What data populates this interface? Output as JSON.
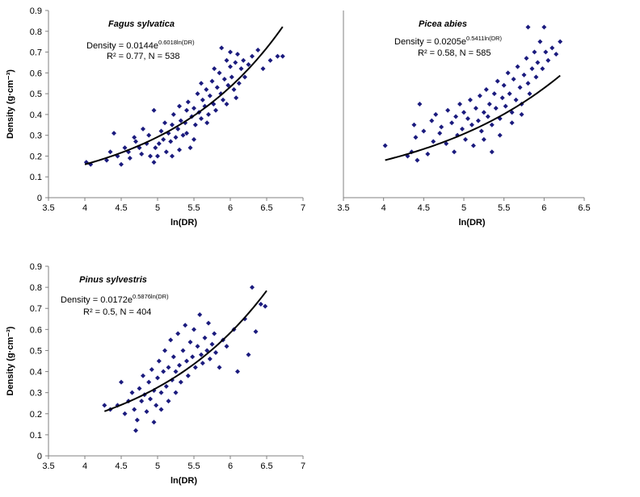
{
  "colors": {
    "marker": "#1b1b7e",
    "curve": "#000000",
    "axis": "#808080"
  },
  "chart_data": [
    {
      "type": "scatter",
      "title": "Fagus sylvatica",
      "xlabel": "ln(DR)",
      "ylabel": "Density (g·cm⁻³)",
      "xlim": [
        3.5,
        7
      ],
      "ylim": [
        0,
        0.9
      ],
      "xticks": [
        "3.5",
        "4",
        "4.5",
        "5",
        "5.5",
        "6",
        "6.5",
        "7"
      ],
      "yticks": [
        "0",
        "0.1",
        "0.2",
        "0.3",
        "0.4",
        "0.5",
        "0.6",
        "0.7",
        "0.8",
        "0.9"
      ],
      "equation": {
        "prefix": "Density = 0.0144e",
        "exponent": "0.6018ln(DR)",
        "stats": "R² = 0.77, N = 538"
      },
      "fit": {
        "a": 0.0144,
        "b": 0.6018,
        "x_range": [
          4.0,
          6.72
        ]
      },
      "points": [
        [
          4.02,
          0.17
        ],
        [
          4.08,
          0.16
        ],
        [
          4.3,
          0.18
        ],
        [
          4.35,
          0.22
        ],
        [
          4.4,
          0.31
        ],
        [
          4.45,
          0.2
        ],
        [
          4.5,
          0.16
        ],
        [
          4.55,
          0.24
        ],
        [
          4.6,
          0.22
        ],
        [
          4.62,
          0.19
        ],
        [
          4.68,
          0.29
        ],
        [
          4.7,
          0.27
        ],
        [
          4.75,
          0.24
        ],
        [
          4.78,
          0.21
        ],
        [
          4.8,
          0.33
        ],
        [
          4.85,
          0.26
        ],
        [
          4.88,
          0.3
        ],
        [
          4.9,
          0.2
        ],
        [
          4.95,
          0.42
        ],
        [
          4.97,
          0.24
        ],
        [
          5.0,
          0.2
        ],
        [
          5.02,
          0.26
        ],
        [
          5.05,
          0.32
        ],
        [
          5.08,
          0.28
        ],
        [
          5.1,
          0.36
        ],
        [
          5.12,
          0.22
        ],
        [
          5.15,
          0.31
        ],
        [
          5.18,
          0.27
        ],
        [
          5.2,
          0.35
        ],
        [
          5.22,
          0.4
        ],
        [
          5.25,
          0.29
        ],
        [
          5.28,
          0.33
        ],
        [
          5.3,
          0.44
        ],
        [
          5.32,
          0.37
        ],
        [
          5.35,
          0.3
        ],
        [
          5.38,
          0.36
        ],
        [
          5.4,
          0.42
        ],
        [
          5.42,
          0.46
        ],
        [
          5.45,
          0.24
        ],
        [
          5.47,
          0.39
        ],
        [
          5.5,
          0.43
        ],
        [
          5.52,
          0.35
        ],
        [
          5.55,
          0.5
        ],
        [
          5.57,
          0.41
        ],
        [
          5.6,
          0.38
        ],
        [
          5.62,
          0.47
        ],
        [
          5.65,
          0.44
        ],
        [
          5.67,
          0.52
        ],
        [
          5.7,
          0.4
        ],
        [
          5.72,
          0.49
        ],
        [
          5.75,
          0.56
        ],
        [
          5.77,
          0.45
        ],
        [
          5.8,
          0.42
        ],
        [
          5.82,
          0.53
        ],
        [
          5.85,
          0.6
        ],
        [
          5.87,
          0.5
        ],
        [
          5.9,
          0.47
        ],
        [
          5.92,
          0.57
        ],
        [
          5.95,
          0.66
        ],
        [
          5.97,
          0.54
        ],
        [
          6.0,
          0.63
        ],
        [
          6.02,
          0.58
        ],
        [
          6.05,
          0.52
        ],
        [
          6.07,
          0.65
        ],
        [
          6.1,
          0.69
        ],
        [
          6.12,
          0.55
        ],
        [
          6.15,
          0.62
        ],
        [
          6.18,
          0.66
        ],
        [
          6.2,
          0.58
        ],
        [
          6.25,
          0.64
        ],
        [
          6.3,
          0.68
        ],
        [
          6.38,
          0.71
        ],
        [
          6.45,
          0.62
        ],
        [
          6.55,
          0.66
        ],
        [
          6.65,
          0.68
        ],
        [
          6.72,
          0.68
        ],
        [
          5.6,
          0.55
        ],
        [
          5.88,
          0.72
        ],
        [
          6.0,
          0.7
        ],
        [
          5.78,
          0.62
        ],
        [
          5.95,
          0.45
        ],
        [
          6.08,
          0.48
        ],
        [
          5.5,
          0.28
        ],
        [
          5.4,
          0.31
        ],
        [
          5.68,
          0.36
        ],
        [
          5.3,
          0.23
        ],
        [
          5.2,
          0.2
        ],
        [
          4.95,
          0.17
        ]
      ]
    },
    {
      "type": "scatter",
      "title": "Picea abies",
      "xlabel": "ln(DR)",
      "ylabel": "",
      "xlim": [
        3.5,
        6.5
      ],
      "ylim": [
        0,
        0.9
      ],
      "xticks": [
        "3.5",
        "4",
        "4.5",
        "5",
        "5.5",
        "6",
        "6.5"
      ],
      "yticks": [],
      "equation": {
        "prefix": "Density = 0.0205e",
        "exponent": "0.5411ln(DR)",
        "stats": "R² = 0.58, N = 585"
      },
      "fit": {
        "a": 0.0205,
        "b": 0.5411,
        "x_range": [
          4.02,
          6.2
        ]
      },
      "points": [
        [
          4.02,
          0.25
        ],
        [
          4.3,
          0.2
        ],
        [
          4.35,
          0.22
        ],
        [
          4.38,
          0.35
        ],
        [
          4.4,
          0.29
        ],
        [
          4.42,
          0.18
        ],
        [
          4.45,
          0.45
        ],
        [
          4.5,
          0.32
        ],
        [
          4.55,
          0.21
        ],
        [
          4.6,
          0.37
        ],
        [
          4.62,
          0.27
        ],
        [
          4.65,
          0.4
        ],
        [
          4.7,
          0.31
        ],
        [
          4.72,
          0.34
        ],
        [
          4.78,
          0.26
        ],
        [
          4.8,
          0.42
        ],
        [
          4.85,
          0.36
        ],
        [
          4.88,
          0.22
        ],
        [
          4.9,
          0.39
        ],
        [
          4.92,
          0.3
        ],
        [
          4.95,
          0.45
        ],
        [
          4.98,
          0.33
        ],
        [
          5.0,
          0.41
        ],
        [
          5.02,
          0.28
        ],
        [
          5.05,
          0.38
        ],
        [
          5.08,
          0.47
        ],
        [
          5.1,
          0.35
        ],
        [
          5.12,
          0.25
        ],
        [
          5.15,
          0.43
        ],
        [
          5.18,
          0.37
        ],
        [
          5.2,
          0.49
        ],
        [
          5.22,
          0.32
        ],
        [
          5.25,
          0.41
        ],
        [
          5.28,
          0.52
        ],
        [
          5.3,
          0.39
        ],
        [
          5.32,
          0.45
        ],
        [
          5.35,
          0.35
        ],
        [
          5.38,
          0.5
        ],
        [
          5.4,
          0.43
        ],
        [
          5.42,
          0.56
        ],
        [
          5.45,
          0.38
        ],
        [
          5.48,
          0.48
        ],
        [
          5.5,
          0.54
        ],
        [
          5.52,
          0.44
        ],
        [
          5.55,
          0.6
        ],
        [
          5.57,
          0.5
        ],
        [
          5.6,
          0.41
        ],
        [
          5.62,
          0.57
        ],
        [
          5.65,
          0.47
        ],
        [
          5.67,
          0.63
        ],
        [
          5.7,
          0.53
        ],
        [
          5.72,
          0.45
        ],
        [
          5.75,
          0.59
        ],
        [
          5.78,
          0.67
        ],
        [
          5.8,
          0.55
        ],
        [
          5.82,
          0.5
        ],
        [
          5.85,
          0.62
        ],
        [
          5.88,
          0.7
        ],
        [
          5.9,
          0.58
        ],
        [
          5.92,
          0.65
        ],
        [
          5.95,
          0.75
        ],
        [
          5.98,
          0.62
        ],
        [
          6.0,
          0.82
        ],
        [
          6.02,
          0.7
        ],
        [
          6.05,
          0.66
        ],
        [
          6.1,
          0.72
        ],
        [
          6.15,
          0.69
        ],
        [
          6.2,
          0.75
        ],
        [
          5.8,
          0.82
        ],
        [
          5.35,
          0.22
        ],
        [
          5.25,
          0.28
        ],
        [
          5.45,
          0.3
        ],
        [
          5.6,
          0.36
        ],
        [
          5.72,
          0.4
        ]
      ]
    },
    {
      "type": "scatter",
      "title": "Pinus sylvestris",
      "xlabel": "ln(DR)",
      "ylabel": "Density (g·cm⁻³)",
      "xlim": [
        3.5,
        7
      ],
      "ylim": [
        0,
        0.9
      ],
      "xticks": [
        "3.5",
        "4",
        "4.5",
        "5",
        "5.5",
        "6",
        "6.5",
        "7"
      ],
      "yticks": [
        "0",
        "0.1",
        "0.2",
        "0.3",
        "0.4",
        "0.5",
        "0.6",
        "0.7",
        "0.8",
        "0.9"
      ],
      "equation": {
        "prefix": "Density = 0.0172e",
        "exponent": "0.5876ln(DR)",
        "stats": "R² = 0.5, N = 404"
      },
      "fit": {
        "a": 0.0172,
        "b": 0.5876,
        "x_range": [
          4.27,
          6.5
        ]
      },
      "points": [
        [
          4.27,
          0.24
        ],
        [
          4.35,
          0.22
        ],
        [
          4.45,
          0.24
        ],
        [
          4.5,
          0.35
        ],
        [
          4.55,
          0.2
        ],
        [
          4.6,
          0.26
        ],
        [
          4.65,
          0.3
        ],
        [
          4.68,
          0.22
        ],
        [
          4.7,
          0.12
        ],
        [
          4.72,
          0.17
        ],
        [
          4.75,
          0.32
        ],
        [
          4.78,
          0.26
        ],
        [
          4.8,
          0.38
        ],
        [
          4.82,
          0.29
        ],
        [
          4.85,
          0.21
        ],
        [
          4.88,
          0.35
        ],
        [
          4.9,
          0.27
        ],
        [
          4.92,
          0.41
        ],
        [
          4.95,
          0.31
        ],
        [
          4.98,
          0.24
        ],
        [
          5.0,
          0.37
        ],
        [
          5.02,
          0.45
        ],
        [
          5.05,
          0.3
        ],
        [
          5.08,
          0.4
        ],
        [
          5.1,
          0.5
        ],
        [
          5.12,
          0.33
        ],
        [
          5.15,
          0.42
        ],
        [
          5.18,
          0.55
        ],
        [
          5.2,
          0.36
        ],
        [
          5.22,
          0.47
        ],
        [
          5.25,
          0.4
        ],
        [
          5.28,
          0.58
        ],
        [
          5.3,
          0.43
        ],
        [
          5.32,
          0.35
        ],
        [
          5.35,
          0.5
        ],
        [
          5.38,
          0.62
        ],
        [
          5.4,
          0.45
        ],
        [
          5.42,
          0.38
        ],
        [
          5.45,
          0.54
        ],
        [
          5.48,
          0.47
        ],
        [
          5.5,
          0.6
        ],
        [
          5.52,
          0.42
        ],
        [
          5.55,
          0.52
        ],
        [
          5.58,
          0.67
        ],
        [
          5.6,
          0.48
        ],
        [
          5.62,
          0.44
        ],
        [
          5.65,
          0.56
        ],
        [
          5.68,
          0.5
        ],
        [
          5.7,
          0.63
        ],
        [
          5.72,
          0.46
        ],
        [
          5.75,
          0.53
        ],
        [
          5.78,
          0.58
        ],
        [
          5.8,
          0.49
        ],
        [
          5.85,
          0.42
        ],
        [
          5.9,
          0.55
        ],
        [
          5.95,
          0.52
        ],
        [
          6.05,
          0.6
        ],
        [
          6.1,
          0.4
        ],
        [
          6.2,
          0.65
        ],
        [
          6.25,
          0.48
        ],
        [
          6.3,
          0.8
        ],
        [
          6.35,
          0.59
        ],
        [
          6.42,
          0.72
        ],
        [
          6.48,
          0.71
        ],
        [
          5.05,
          0.22
        ],
        [
          5.15,
          0.26
        ],
        [
          5.25,
          0.3
        ],
        [
          4.95,
          0.16
        ]
      ]
    }
  ]
}
